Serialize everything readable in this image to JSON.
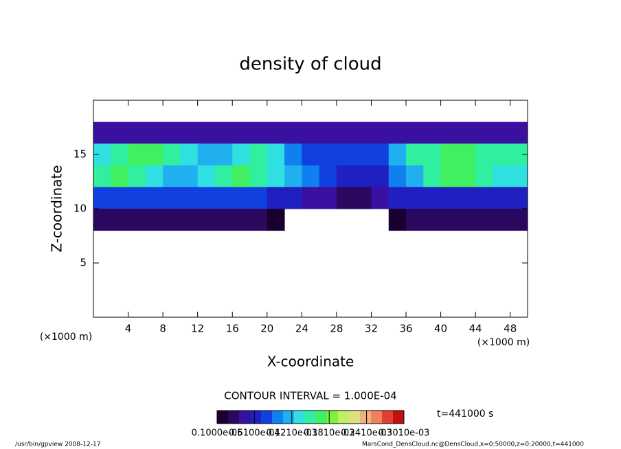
{
  "chart_data": {
    "type": "heatmap",
    "title": "density of cloud",
    "x_label": "X-coordinate",
    "y_label": "Z-coordinate",
    "x_unit": "(×1000 m)",
    "y_unit": "(×1000 m)",
    "x": [
      1,
      3,
      5,
      7,
      9,
      11,
      13,
      15,
      17,
      19,
      21,
      23,
      25,
      27,
      29,
      31,
      33,
      35,
      37,
      39,
      41,
      43,
      45,
      47,
      49
    ],
    "y": [
      17,
      15,
      13,
      11,
      9
    ],
    "values": [
      [
        4e-05,
        5e-05,
        5e-05,
        5e-05,
        5e-05,
        5e-05,
        5e-05,
        5e-05,
        5e-05,
        5e-05,
        5e-05,
        5e-05,
        4e-05,
        4e-05,
        4e-05,
        4e-05,
        4e-05,
        4e-05,
        4e-05,
        4e-05,
        4e-05,
        4e-05,
        4e-05,
        4e-05,
        4e-05
      ],
      [
        0.00014,
        0.00016,
        0.00018,
        0.00018,
        0.00016,
        0.00014,
        0.00012,
        0.00012,
        0.00014,
        0.00016,
        0.00014,
        0.0001,
        8e-05,
        8e-05,
        8e-05,
        9e-05,
        8e-05,
        0.00012,
        0.00016,
        0.00016,
        0.00018,
        0.00018,
        0.00016,
        0.00016,
        0.00016
      ],
      [
        0.00016,
        0.00018,
        0.00016,
        0.00014,
        0.00012,
        0.00012,
        0.00014,
        0.00016,
        0.00018,
        0.00016,
        0.00014,
        0.00012,
        0.0001,
        8e-05,
        7e-05,
        6e-05,
        7e-05,
        0.0001,
        0.00012,
        0.00016,
        0.00018,
        0.00018,
        0.00016,
        0.00014,
        0.00014
      ],
      [
        9e-05,
        9e-05,
        8e-05,
        8e-05,
        8e-05,
        8e-05,
        9e-05,
        9e-05,
        9e-05,
        8e-05,
        7e-05,
        6e-05,
        5e-05,
        4e-05,
        3e-05,
        2e-05,
        4e-05,
        7e-05,
        6e-05,
        6e-05,
        6e-05,
        6e-05,
        6e-05,
        6e-05,
        6e-05
      ],
      [
        3e-05,
        3e-05,
        2e-05,
        2e-05,
        2e-05,
        2e-05,
        3e-05,
        3e-05,
        2e-05,
        2e-05,
        1e-05,
        null,
        null,
        null,
        null,
        null,
        null,
        1e-05,
        2e-05,
        2e-05,
        2e-05,
        2e-05,
        2e-05,
        2e-05,
        2e-05
      ]
    ],
    "cell_width": 2,
    "cell_height": 2,
    "xlim": [
      0,
      50
    ],
    "ylim": [
      0,
      20
    ],
    "xticks": [
      4,
      8,
      12,
      16,
      20,
      24,
      28,
      32,
      36,
      40,
      44,
      48
    ],
    "yticks": [
      5,
      10,
      15
    ],
    "colormap": [
      "#1a0030",
      "#2a0860",
      "#3a10a0",
      "#2020c0",
      "#1040e0",
      "#1080f0",
      "#20b0f0",
      "#30e0e0",
      "#30f0a0",
      "#40f060",
      "#80f040",
      "#c0f060",
      "#e0e080",
      "#f0b080",
      "#f08060",
      "#e04030",
      "#c01010"
    ],
    "clim": [
      1e-06,
      0.000301
    ],
    "cticks": [
      {
        "value": 1e-06,
        "label": "0.1000e-05"
      },
      {
        "value": 6.1e-05,
        "label": "0.6100e-04"
      },
      {
        "value": 0.000121,
        "label": "0.1210e-03"
      },
      {
        "value": 0.000181,
        "label": "0.1810e-03"
      },
      {
        "value": 0.000241,
        "label": "0.2410e-03"
      },
      {
        "value": 0.000301,
        "label": "0.3010e-03"
      }
    ],
    "contour_text": "CONTOUR INTERVAL = 1.000E-04",
    "time_text": "t=441000 s",
    "footer_left": "/usr/bin/gpview  2008-12-17",
    "footer_right": "MarsCond_DensCloud.nc@DensCloud,x=0:50000,z=0:20000,t=441000"
  }
}
